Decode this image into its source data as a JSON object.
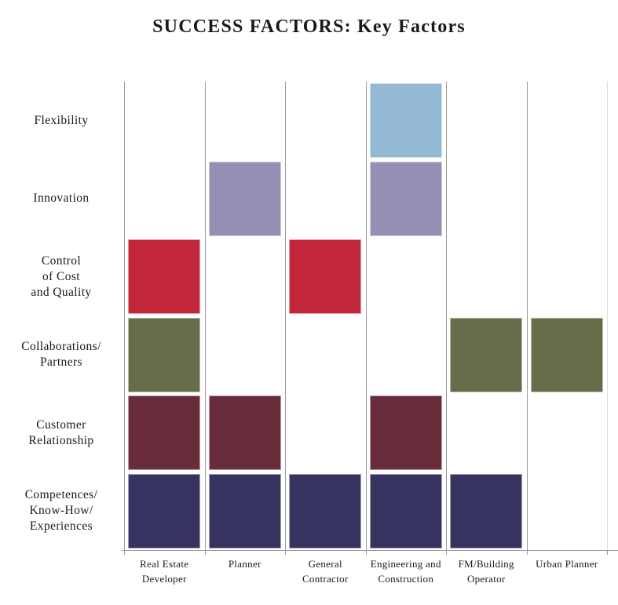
{
  "chart_data": {
    "type": "heatmap",
    "title": "SUCCESS FACTORS: Key Factors",
    "rows": [
      {
        "label_lines": [
          "Flexibility"
        ],
        "color": "#94B9D5",
        "color_name": "light-blue"
      },
      {
        "label_lines": [
          "Innovation"
        ],
        "color": "#9590B3",
        "color_name": "lavender"
      },
      {
        "label_lines": [
          "Control",
          "of Cost",
          "and Quality"
        ],
        "color": "#C1263B",
        "color_name": "crimson"
      },
      {
        "label_lines": [
          "Collaborations/",
          "Partners"
        ],
        "color": "#666D4B",
        "color_name": "olive-green"
      },
      {
        "label_lines": [
          "Customer",
          "Relationship"
        ],
        "color": "#682C3A",
        "color_name": "maroon"
      },
      {
        "label_lines": [
          "Competences/",
          "Know-How/",
          "Experiences"
        ],
        "color": "#373360",
        "color_name": "navy"
      }
    ],
    "columns": [
      {
        "label_lines": [
          "Real Estate",
          "Developer"
        ]
      },
      {
        "label_lines": [
          "Planner"
        ]
      },
      {
        "label_lines": [
          "General",
          "Contractor"
        ]
      },
      {
        "label_lines": [
          "Engineering and",
          "Construction"
        ]
      },
      {
        "label_lines": [
          "FM/Building",
          "Operator"
        ]
      },
      {
        "label_lines": [
          "Urban Planner"
        ]
      }
    ],
    "cells": [
      [
        0,
        0,
        0,
        1,
        0,
        0
      ],
      [
        0,
        1,
        0,
        1,
        0,
        0
      ],
      [
        1,
        0,
        1,
        0,
        0,
        0
      ],
      [
        1,
        0,
        0,
        0,
        1,
        1
      ],
      [
        1,
        1,
        0,
        1,
        0,
        0
      ],
      [
        1,
        1,
        1,
        1,
        1,
        0
      ]
    ],
    "grid": {
      "vertical_lines": true,
      "horizontal_lines": false,
      "line_color": "#9A9A9A",
      "right_edge_color": "#DCDCDC",
      "axis_color": "#999999"
    },
    "legend": "none",
    "background": "#FFFFFF",
    "text_color": "#1A1A1A"
  }
}
